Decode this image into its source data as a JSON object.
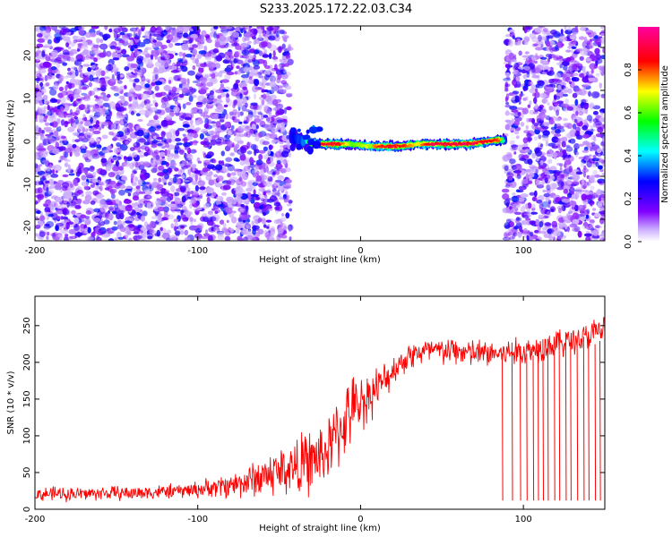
{
  "title": "S233.2025.172.22.03.C34",
  "chart_data": [
    {
      "type": "heatmap",
      "xlabel": "Height of straight line (km)",
      "ylabel": "Frequency (Hz)",
      "xlim": [
        -200,
        150
      ],
      "ylim": [
        -25,
        25
      ],
      "x_ticks": [
        -200,
        -100,
        0,
        100
      ],
      "y_ticks": [
        -20,
        -10,
        0,
        10,
        20
      ],
      "colorbar": {
        "label": "Normalized spectral amplitude",
        "range": [
          0,
          1
        ],
        "ticks": [
          0.0,
          0.2,
          0.4,
          0.6,
          0.8
        ],
        "colormap": [
          "#ffffff",
          "#8000ff",
          "#0000ff",
          "#00ffff",
          "#00ff00",
          "#ffff00",
          "#ff0000",
          "#ff00a0"
        ]
      },
      "noise_regions": [
        {
          "x_range": [
            -200,
            -43
          ],
          "y_range": [
            -25,
            25
          ],
          "amplitude_range": [
            0.05,
            0.3
          ]
        },
        {
          "x_range": [
            89,
            150
          ],
          "y_range": [
            -25,
            25
          ],
          "amplitude_range": [
            0.05,
            0.3
          ]
        }
      ],
      "signal_band": {
        "x": [
          -43,
          -35,
          -25,
          -15,
          -5,
          5,
          15,
          25,
          35,
          45,
          55,
          65,
          75,
          85,
          89
        ],
        "frequency_hz": [
          -0.5,
          -2.0,
          -2.5,
          -2.5,
          -2.5,
          -3.0,
          -3.0,
          -3.0,
          -2.5,
          -2.5,
          -2.5,
          -2.5,
          -2.0,
          -1.5,
          -1.5
        ],
        "peak_amplitude": [
          0.25,
          0.35,
          0.9,
          0.9,
          0.6,
          0.7,
          0.9,
          0.85,
          0.7,
          0.95,
          0.95,
          1.0,
          0.9,
          0.8,
          0.3
        ]
      }
    },
    {
      "type": "line",
      "xlabel": "Height of straight line (km)",
      "ylabel": "SNR (10 * v/v)",
      "xlim": [
        -200,
        150
      ],
      "ylim": [
        0,
        290
      ],
      "x_ticks": [
        -200,
        -100,
        0,
        100
      ],
      "y_ticks": [
        0,
        50,
        100,
        150,
        200,
        250
      ],
      "color": "#ff0000",
      "series": [
        {
          "x": [
            -200,
            -190,
            -180,
            -170,
            -160,
            -150,
            -140,
            -130,
            -120,
            -110,
            -100,
            -90,
            -80,
            -70,
            -60,
            -50,
            -40,
            -30,
            -20,
            -15,
            -10,
            -5,
            0,
            5,
            10,
            15,
            20,
            25,
            30,
            40,
            50,
            60,
            70,
            80,
            90,
            100,
            110,
            120,
            130,
            140,
            150
          ],
          "values": [
            20,
            21,
            21,
            21,
            22,
            22,
            22,
            23,
            24,
            25,
            27,
            30,
            33,
            38,
            45,
            52,
            58,
            65,
            80,
            100,
            120,
            135,
            145,
            155,
            165,
            175,
            190,
            200,
            210,
            215,
            215,
            215,
            212,
            212,
            212,
            215,
            220,
            225,
            230,
            235,
            245
          ],
          "noise_amplitude": [
            10,
            10,
            10,
            10,
            10,
            10,
            10,
            10,
            10,
            10,
            12,
            14,
            18,
            22,
            30,
            35,
            40,
            45,
            45,
            50,
            50,
            45,
            40,
            35,
            30,
            25,
            20,
            20,
            20,
            20,
            20,
            20,
            20,
            20,
            20,
            20,
            20,
            20,
            20,
            20,
            25
          ]
        }
      ],
      "dropouts_x": [
        87,
        93,
        98,
        102,
        106,
        109,
        112,
        115,
        119,
        122,
        126,
        129,
        133,
        137,
        140,
        144,
        147
      ]
    }
  ]
}
